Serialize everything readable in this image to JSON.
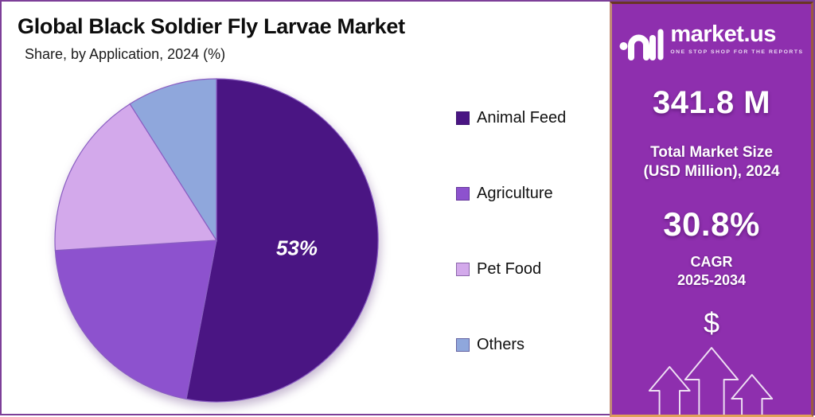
{
  "chart_data": {
    "type": "pie",
    "title": "Global Black Soldier Fly Larvae Market",
    "subtitle": "Share, by Application, 2024 (%)",
    "unit": "%",
    "categories": [
      "Animal Feed",
      "Agriculture",
      "Pet Food",
      "Others"
    ],
    "values": [
      53,
      21,
      17,
      9
    ],
    "colors": [
      "#4a1583",
      "#8d52ce",
      "#d3a9eb",
      "#8fa7dc"
    ],
    "slice_labels": [
      "53%",
      "",
      "",
      ""
    ],
    "slice_stroke": "#8a5ec2",
    "start_angle_deg": 0,
    "direction": "clockwise",
    "legend_position": "right"
  },
  "brand": {
    "logo_text": "market.us",
    "tagline": "ONE STOP SHOP FOR THE REPORTS",
    "market_size": {
      "value": "341.8 M",
      "label_line1": "Total Market Size",
      "label_line2": "(USD Million), 2024"
    },
    "cagr": {
      "value": "30.8%",
      "label_line1": "CAGR",
      "label_line2": "2025-2034"
    },
    "dollar_symbol": "$",
    "colors": {
      "panel_top": "#a44fc2",
      "panel_mid": "#8e2fae",
      "panel_bottom": "#5e1c77",
      "border_gold": "#e2a158",
      "border_rose": "#c08a76",
      "frame_purple": "#7d3f98"
    }
  }
}
